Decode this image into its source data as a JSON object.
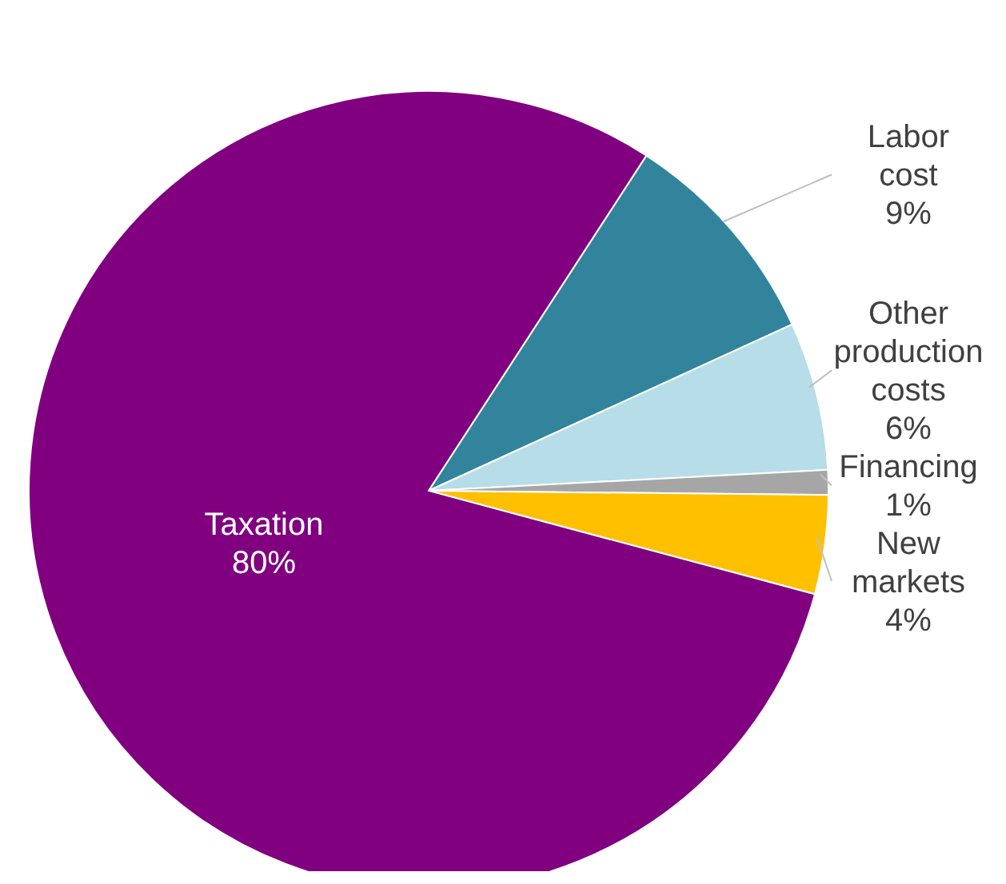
{
  "chart_data": {
    "type": "pie",
    "categories": [
      "Labor cost",
      "Other production costs",
      "Financing",
      "New markets",
      "Taxation"
    ],
    "values": [
      9,
      6,
      1,
      4,
      80
    ],
    "value_labels": [
      "9%",
      "6%",
      "1%",
      "4%",
      "80%"
    ],
    "colors": [
      "#31849b",
      "#b7dde8",
      "#a6a6a6",
      "#ffc000",
      "#800080"
    ],
    "legend": false
  }
}
